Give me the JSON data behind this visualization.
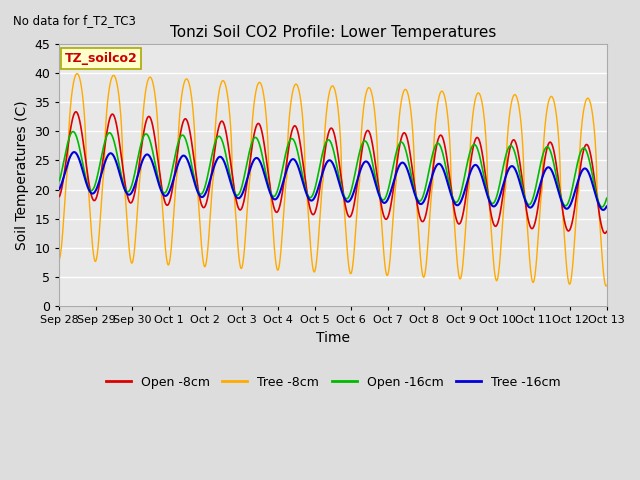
{
  "title": "Tonzi Soil CO2 Profile: Lower Temperatures",
  "subtitle": "No data for f_T2_TC3",
  "xlabel": "Time",
  "ylabel": "Soil Temperatures (C)",
  "ylim": [
    0,
    45
  ],
  "tick_labels": [
    "Sep 28",
    "Sep 29",
    "Sep 30",
    "Oct 1",
    "Oct 2",
    "Oct 3",
    "Oct 4",
    "Oct 5",
    "Oct 6",
    "Oct 7",
    "Oct 8",
    "Oct 9",
    "Oct 10",
    "Oct 11",
    "Oct 12",
    "Oct 13"
  ],
  "yticks": [
    0,
    5,
    10,
    15,
    20,
    25,
    30,
    35,
    40,
    45
  ],
  "legend_label_box": "TZ_soilco2",
  "colors": {
    "open_8cm": "#dd0000",
    "tree_8cm": "#ffaa00",
    "open_16cm": "#00bb00",
    "tree_16cm": "#0000dd"
  },
  "legend_entries": [
    "Open -8cm",
    "Tree -8cm",
    "Open -16cm",
    "Tree -16cm"
  ],
  "fig_bg_color": "#dddddd",
  "plot_bg_color": "#e8e8e8",
  "grid_color": "#ffffff"
}
